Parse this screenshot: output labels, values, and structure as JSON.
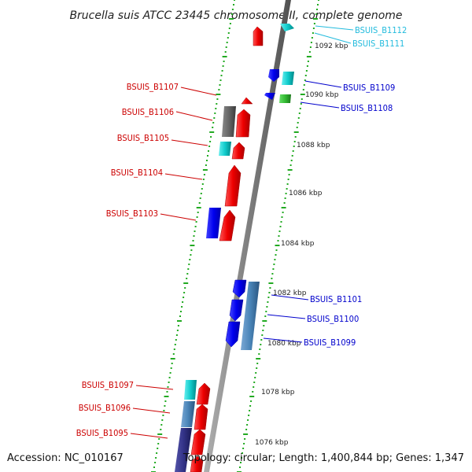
{
  "title": "Brucella suis ATCC 23445 chromosome II, complete genome",
  "footer": {
    "accession": "Accession: NC_010167",
    "summary": "Topology: circular; Length: 1,400,844 bp; Genes: 1,347"
  },
  "colors": {
    "forward": "#ff0000",
    "reverse": "#0000ff",
    "cyan": "#11cccc",
    "steel": "#4a85b8",
    "grey": "#666666",
    "green": "#33bb33",
    "navy": "#333388",
    "dots": "#22aa22",
    "backbone": "#808080",
    "label_light": "#22bbdd",
    "label_red": "#cc0000",
    "label_blue": "#0000cc"
  },
  "scale_labels": [
    "1092 kbp",
    "1090 kbp",
    "1088 kbp",
    "1086 kbp",
    "1084 kbp",
    "1082 kbp",
    "1080 kbp",
    "1078 kbp",
    "1076 kbp"
  ],
  "genes": {
    "B1112": "BSUIS_B1112",
    "B1111": "BSUIS_B1111",
    "B1109": "BSUIS_B1109",
    "B1108": "BSUIS_B1108",
    "B1107": "BSUIS_B1107",
    "B1106": "BSUIS_B1106",
    "B1105": "BSUIS_B1105",
    "B1104": "BSUIS_B1104",
    "B1103": "BSUIS_B1103",
    "B1101": "BSUIS_B1101",
    "B1100": "BSUIS_B1100",
    "B1099": "BSUIS_B1099",
    "B1097": "BSUIS_B1097",
    "B1096": "BSUIS_B1096",
    "B1095": "BSUIS_B1095"
  }
}
